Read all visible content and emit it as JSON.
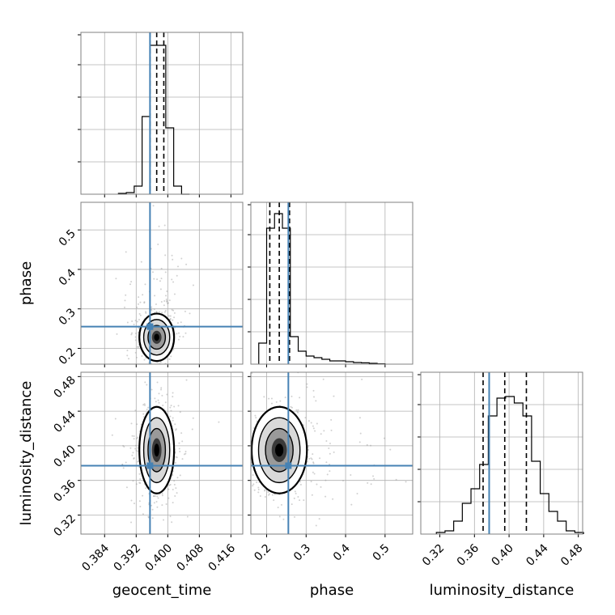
{
  "chart_data": {
    "type": "corner",
    "parameters": [
      {
        "key": "geocent_time",
        "label": "geocent_time",
        "range": [
          0.378,
          0.419
        ],
        "ticks": [
          0.384,
          0.392,
          0.4,
          0.408,
          0.416
        ],
        "tick_labels": [
          "0.384",
          "0.392",
          "0.400",
          "0.408",
          "0.416"
        ]
      },
      {
        "key": "phase",
        "label": "phase",
        "range": [
          0.16,
          0.57
        ],
        "ticks": [
          0.2,
          0.3,
          0.4,
          0.5
        ],
        "tick_labels": [
          "0.2",
          "0.3",
          "0.4",
          "0.5"
        ]
      },
      {
        "key": "luminosity_distance",
        "label": "luminosity_distance",
        "range": [
          0.298,
          0.485
        ],
        "ticks": [
          0.32,
          0.36,
          0.4,
          0.44,
          0.48
        ],
        "tick_labels": [
          "0.32",
          "0.36",
          "0.40",
          "0.44",
          "0.48"
        ]
      }
    ],
    "truths": {
      "geocent_time": 0.3955,
      "phase": 0.255,
      "luminosity_distance": 0.377
    },
    "quantiles": {
      "geocent_time": [
        0.3955,
        0.3972,
        0.399
      ],
      "phase": [
        0.208,
        0.232,
        0.258
      ],
      "luminosity_distance": [
        0.37,
        0.395,
        0.42
      ]
    },
    "histograms": {
      "geocent_time": {
        "bin_edges": [
          0.3875,
          0.3895,
          0.3915,
          0.3935,
          0.3955,
          0.3975,
          0.3995,
          0.4015,
          0.4035,
          0.4055
        ],
        "counts": [
          0.005,
          0.01,
          0.05,
          0.48,
          0.92,
          0.92,
          0.41,
          0.05,
          0.0
        ]
      },
      "phase": {
        "bin_edges": [
          0.18,
          0.2,
          0.22,
          0.24,
          0.26,
          0.28,
          0.3,
          0.32,
          0.34,
          0.36,
          0.38,
          0.4,
          0.42,
          0.44,
          0.46,
          0.48,
          0.5
        ],
        "counts": [
          0.13,
          0.84,
          0.93,
          0.84,
          0.17,
          0.08,
          0.05,
          0.04,
          0.03,
          0.02,
          0.02,
          0.015,
          0.01,
          0.008,
          0.005,
          0.002
        ]
      },
      "luminosity_distance": {
        "bin_edges": [
          0.316,
          0.326,
          0.336,
          0.346,
          0.356,
          0.366,
          0.376,
          0.386,
          0.396,
          0.406,
          0.416,
          0.426,
          0.436,
          0.446,
          0.456,
          0.466,
          0.476,
          0.486
        ],
        "counts": [
          0.01,
          0.02,
          0.08,
          0.19,
          0.28,
          0.43,
          0.73,
          0.84,
          0.85,
          0.81,
          0.73,
          0.45,
          0.25,
          0.14,
          0.08,
          0.02,
          0.01
        ]
      }
    },
    "joint_2d": [
      {
        "x": "geocent_time",
        "y": "phase",
        "center": [
          0.3972,
          0.228
        ],
        "spread": [
          0.0022,
          0.03
        ]
      },
      {
        "x": "geocent_time",
        "y": "luminosity_distance",
        "center": [
          0.3972,
          0.395
        ],
        "spread": [
          0.0022,
          0.025
        ]
      },
      {
        "x": "phase",
        "y": "luminosity_distance",
        "center": [
          0.232,
          0.395
        ],
        "spread": [
          0.035,
          0.025
        ]
      }
    ],
    "style": {
      "truth_color": "#4682b4",
      "grid": true,
      "hist_color": "#000000"
    }
  }
}
